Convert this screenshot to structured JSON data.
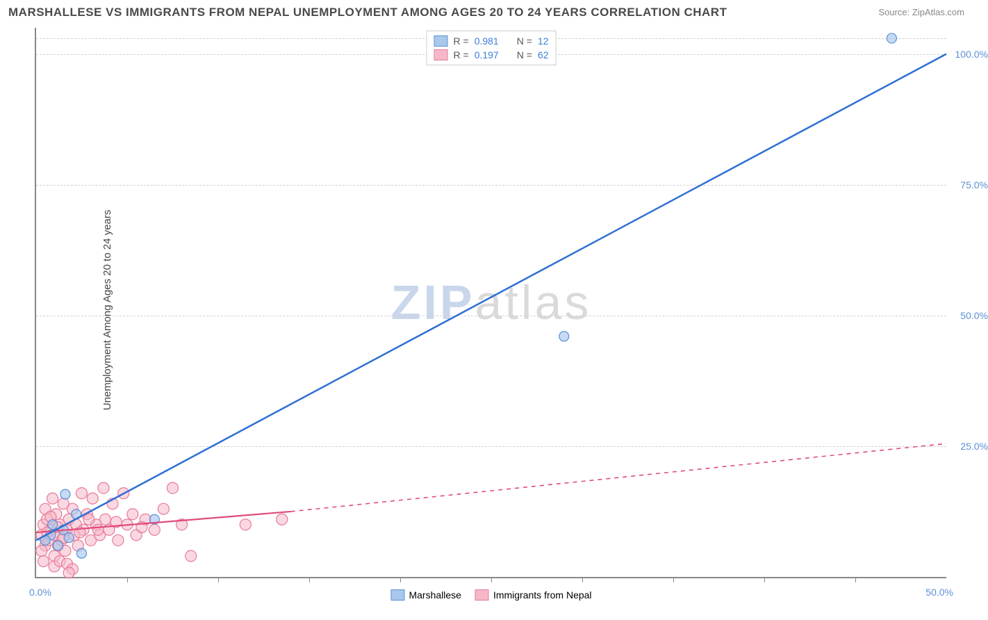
{
  "title": "MARSHALLESE VS IMMIGRANTS FROM NEPAL UNEMPLOYMENT AMONG AGES 20 TO 24 YEARS CORRELATION CHART",
  "source_prefix": "Source: ",
  "source_name": "ZipAtlas.com",
  "ylabel": "Unemployment Among Ages 20 to 24 years",
  "watermark_z": "ZIP",
  "watermark_rest": "atlas",
  "chart": {
    "type": "scatter",
    "xlim": [
      0,
      50
    ],
    "ylim": [
      0,
      105
    ],
    "x_tick_step": 5,
    "y_gridlines": [
      25,
      50,
      75,
      100
    ],
    "y_tick_labels": [
      "25.0%",
      "50.0%",
      "75.0%",
      "100.0%"
    ],
    "x_start_label": "0.0%",
    "x_end_label": "50.0%",
    "background_color": "#ffffff",
    "grid_color": "#d0d0d0",
    "axis_color": "#888888",
    "tick_label_color": "#5b8fd6"
  },
  "series": {
    "blue": {
      "label": "Marshallese",
      "R_label": "R =",
      "R": "0.981",
      "N_label": "N =",
      "N": "12",
      "fill_color": "#a8c8ec",
      "stroke_color": "#5b8fd6",
      "line_color": "#2e6fd4",
      "line_width": 2.5,
      "line_dash": "none",
      "marker_radius": 7,
      "marker_opacity": 0.65,
      "trend_solid": {
        "x1": 0,
        "y1": 7,
        "x2": 50,
        "y2": 100
      },
      "points": [
        {
          "x": 47,
          "y": 103
        },
        {
          "x": 29,
          "y": 46
        },
        {
          "x": 6.5,
          "y": 11
        },
        {
          "x": 1.6,
          "y": 15.8
        },
        {
          "x": 2.2,
          "y": 12
        },
        {
          "x": 2.5,
          "y": 4.5
        },
        {
          "x": 0.8,
          "y": 8
        },
        {
          "x": 1.2,
          "y": 6
        },
        {
          "x": 1.5,
          "y": 9
        },
        {
          "x": 0.5,
          "y": 7
        },
        {
          "x": 0.9,
          "y": 10
        },
        {
          "x": 1.8,
          "y": 7.5
        }
      ]
    },
    "pink": {
      "label": "Immigrants from Nepal",
      "R_label": "R =",
      "R": "0.197",
      "N_label": "N =",
      "N": "62",
      "fill_color": "#f5b8c8",
      "stroke_color": "#e77a9a",
      "line_color": "#e14b77",
      "line_width": 2.2,
      "line_dash": "none",
      "marker_radius": 8,
      "marker_opacity": 0.55,
      "trend_solid": {
        "x1": 0,
        "y1": 8.5,
        "x2": 14,
        "y2": 12.5
      },
      "trend_dashed": {
        "x1": 14,
        "y1": 12.5,
        "x2": 50,
        "y2": 25.5
      },
      "points": [
        {
          "x": 0.3,
          "y": 8
        },
        {
          "x": 0.5,
          "y": 6
        },
        {
          "x": 0.4,
          "y": 10
        },
        {
          "x": 0.7,
          "y": 7
        },
        {
          "x": 0.8,
          "y": 9
        },
        {
          "x": 0.6,
          "y": 11
        },
        {
          "x": 1.0,
          "y": 8
        },
        {
          "x": 1.1,
          "y": 12
        },
        {
          "x": 1.2,
          "y": 6
        },
        {
          "x": 1.3,
          "y": 10
        },
        {
          "x": 1.4,
          "y": 7
        },
        {
          "x": 1.5,
          "y": 14
        },
        {
          "x": 1.6,
          "y": 5
        },
        {
          "x": 1.7,
          "y": 9
        },
        {
          "x": 1.8,
          "y": 11
        },
        {
          "x": 1.0,
          "y": 4
        },
        {
          "x": 2.0,
          "y": 13
        },
        {
          "x": 2.1,
          "y": 8
        },
        {
          "x": 2.2,
          "y": 10
        },
        {
          "x": 2.3,
          "y": 6
        },
        {
          "x": 2.5,
          "y": 16
        },
        {
          "x": 2.6,
          "y": 9
        },
        {
          "x": 2.8,
          "y": 12
        },
        {
          "x": 3.0,
          "y": 7
        },
        {
          "x": 3.1,
          "y": 15
        },
        {
          "x": 3.3,
          "y": 10
        },
        {
          "x": 3.5,
          "y": 8
        },
        {
          "x": 3.7,
          "y": 17
        },
        {
          "x": 3.8,
          "y": 11
        },
        {
          "x": 4.0,
          "y": 9
        },
        {
          "x": 4.2,
          "y": 14
        },
        {
          "x": 4.5,
          "y": 7
        },
        {
          "x": 4.8,
          "y": 16
        },
        {
          "x": 5.0,
          "y": 10
        },
        {
          "x": 5.3,
          "y": 12
        },
        {
          "x": 5.5,
          "y": 8
        },
        {
          "x": 6.0,
          "y": 11
        },
        {
          "x": 6.5,
          "y": 9
        },
        {
          "x": 7.0,
          "y": 13
        },
        {
          "x": 7.5,
          "y": 17
        },
        {
          "x": 8.0,
          "y": 10
        },
        {
          "x": 8.5,
          "y": 4
        },
        {
          "x": 1.0,
          "y": 2
        },
        {
          "x": 1.3,
          "y": 3
        },
        {
          "x": 1.7,
          "y": 2.5
        },
        {
          "x": 2.0,
          "y": 1.5
        },
        {
          "x": 0.5,
          "y": 13
        },
        {
          "x": 0.9,
          "y": 15
        },
        {
          "x": 0.3,
          "y": 5
        },
        {
          "x": 0.4,
          "y": 3
        },
        {
          "x": 0.6,
          "y": 8.5
        },
        {
          "x": 0.8,
          "y": 11.5
        },
        {
          "x": 1.2,
          "y": 9.5
        },
        {
          "x": 1.5,
          "y": 7.5
        },
        {
          "x": 2.4,
          "y": 8.5
        },
        {
          "x": 2.9,
          "y": 11
        },
        {
          "x": 3.4,
          "y": 9
        },
        {
          "x": 4.4,
          "y": 10.5
        },
        {
          "x": 5.8,
          "y": 9.5
        },
        {
          "x": 11.5,
          "y": 10
        },
        {
          "x": 13.5,
          "y": 11
        },
        {
          "x": 1.8,
          "y": 0.8
        }
      ]
    }
  }
}
